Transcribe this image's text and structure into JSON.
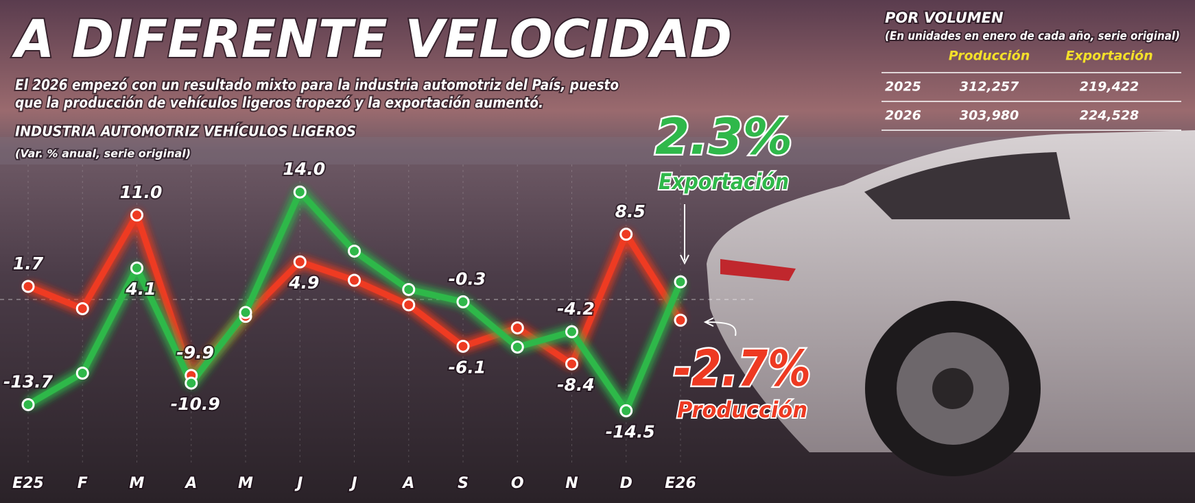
{
  "title": "A DIFERENTE VELOCIDAD",
  "subtitle_lines": [
    "El 2026 empezó con un resultado mixto para la industria automotriz del País, puesto",
    "que la producción de vehículos ligeros tropezó y la exportación aumentó."
  ],
  "table": {
    "title": "POR VOLUMEN",
    "subtitle": "(En unidades en enero de cada año, serie original)",
    "columns": [
      "Producción",
      "Exportación"
    ],
    "rows": [
      [
        "2025",
        "312,257",
        "219,422"
      ],
      [
        "2026",
        "303,980",
        "224,528"
      ]
    ]
  },
  "chart_data": {
    "type": "line",
    "title": "INDUSTRIA AUTOMOTRIZ VEHÍCULOS LIGEROS",
    "subtitle": "(Var. % anual, serie original)",
    "categories": [
      "E25",
      "F",
      "M",
      "A",
      "M",
      "J",
      "J",
      "A",
      "S",
      "O",
      "N",
      "D",
      "E26"
    ],
    "series": [
      {
        "name": "Producción",
        "color": "#ee3a22",
        "values": [
          1.7,
          -1.2,
          11.0,
          -9.9,
          -2.2,
          4.9,
          2.5,
          -0.7,
          -6.1,
          -3.7,
          -8.4,
          8.5,
          -2.7
        ],
        "value_labels": [
          "1.7",
          null,
          "11.0",
          "-9.9",
          null,
          "4.9",
          null,
          null,
          "-6.1",
          null,
          "-8.4",
          "8.5",
          "-2.7%"
        ]
      },
      {
        "name": "Exportación",
        "color": "#2fb84a",
        "values": [
          -13.7,
          -9.6,
          4.1,
          -10.9,
          -1.7,
          14.0,
          6.3,
          1.3,
          -0.3,
          -6.2,
          -4.2,
          -14.5,
          2.3
        ],
        "value_labels": [
          "-13.7",
          null,
          "4.1",
          "-10.9",
          null,
          "14.0",
          null,
          null,
          "-0.3",
          null,
          "-4.2",
          "-14.5",
          "2.3%"
        ]
      }
    ],
    "ylim": [
      -20,
      20
    ],
    "zero_line": true
  }
}
